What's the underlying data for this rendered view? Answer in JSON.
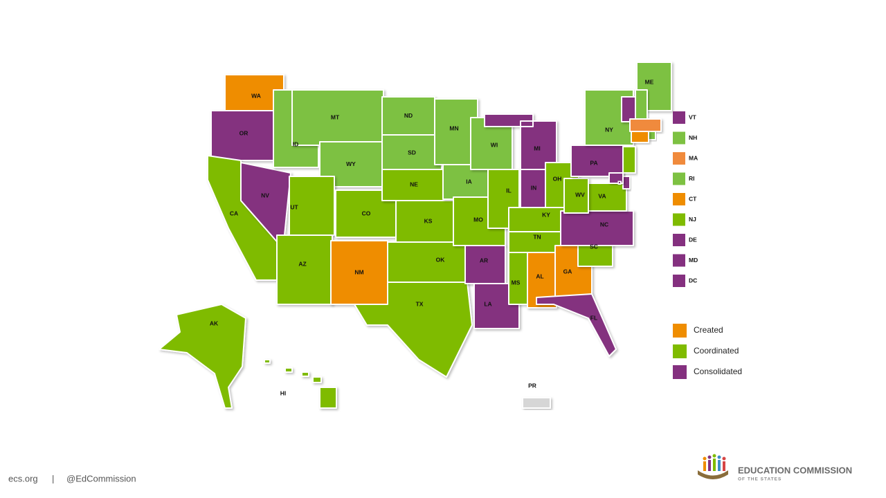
{
  "map": {
    "states": [
      {
        "label": "WA",
        "color": "#ef8d00"
      },
      {
        "label": "OR",
        "color": "#84307f"
      },
      {
        "label": "CA",
        "color": "#7fbb00"
      },
      {
        "label": "NV",
        "color": "#84307f"
      },
      {
        "label": "ID",
        "color": "#7dc142"
      },
      {
        "label": "MT",
        "color": "#7dc142"
      },
      {
        "label": "WY",
        "color": "#7dc142"
      },
      {
        "label": "UT",
        "color": "#7fbb00"
      },
      {
        "label": "CO",
        "color": "#7fbb00"
      },
      {
        "label": "AZ",
        "color": "#7fbb00"
      },
      {
        "label": "NM",
        "color": "#ef8d00"
      },
      {
        "label": "ND",
        "color": "#7dc142"
      },
      {
        "label": "SD",
        "color": "#7dc142"
      },
      {
        "label": "NE",
        "color": "#7fbb00"
      },
      {
        "label": "KS",
        "color": "#7fbb00"
      },
      {
        "label": "OK",
        "color": "#7fbb00"
      },
      {
        "label": "TX",
        "color": "#7fbb00"
      },
      {
        "label": "MN",
        "color": "#7dc142"
      },
      {
        "label": "IA",
        "color": "#7dc142"
      },
      {
        "label": "MO",
        "color": "#7fbb00"
      },
      {
        "label": "AR",
        "color": "#84307f"
      },
      {
        "label": "LA",
        "color": "#84307f"
      },
      {
        "label": "WI",
        "color": "#7dc142"
      },
      {
        "label": "IL",
        "color": "#7fbb00"
      },
      {
        "label": "MI",
        "color": "#84307f"
      },
      {
        "label": "IN",
        "color": "#84307f"
      },
      {
        "label": "OH",
        "color": "#7fbb00"
      },
      {
        "label": "KY",
        "color": "#7fbb00"
      },
      {
        "label": "TN",
        "color": "#7fbb00"
      },
      {
        "label": "MS",
        "color": "#7fbb00"
      },
      {
        "label": "AL",
        "color": "#ef8d00"
      },
      {
        "label": "GA",
        "color": "#ef8d00"
      },
      {
        "label": "FL",
        "color": "#84307f"
      },
      {
        "label": "SC",
        "color": "#7fbb00"
      },
      {
        "label": "NC",
        "color": "#84307f"
      },
      {
        "label": "VA",
        "color": "#7fbb00"
      },
      {
        "label": "WV",
        "color": "#7fbb00"
      },
      {
        "label": "PA",
        "color": "#84307f"
      },
      {
        "label": "NY",
        "color": "#7dc142"
      },
      {
        "label": "ME",
        "color": "#7dc142"
      },
      {
        "label": "AK",
        "color": "#7fbb00"
      },
      {
        "label": "HI",
        "color": "#7fbb00"
      },
      {
        "label": "PR",
        "color": "#d6d6d6"
      }
    ],
    "small_states": [
      {
        "label": "VT",
        "color": "#84307f"
      },
      {
        "label": "NH",
        "color": "#7dc142"
      },
      {
        "label": "MA",
        "color": "#f08a3c"
      },
      {
        "label": "RI",
        "color": "#7dc142"
      },
      {
        "label": "CT",
        "color": "#ef8d00"
      },
      {
        "label": "NJ",
        "color": "#7fbb00"
      },
      {
        "label": "DE",
        "color": "#84307f"
      },
      {
        "label": "MD",
        "color": "#84307f"
      },
      {
        "label": "DC",
        "color": "#84307f"
      }
    ],
    "legend": [
      {
        "label": "Created",
        "color": "#ef8d00"
      },
      {
        "label": "Coordinated",
        "color": "#7fbb00"
      },
      {
        "label": "Consolidated",
        "color": "#84307f"
      }
    ]
  },
  "footer": {
    "site": "ecs.org",
    "separator": "|",
    "handle": "@EdCommission",
    "logo_title": "EDUCATION COMMISSION",
    "logo_subtitle": "OF THE STATES"
  }
}
